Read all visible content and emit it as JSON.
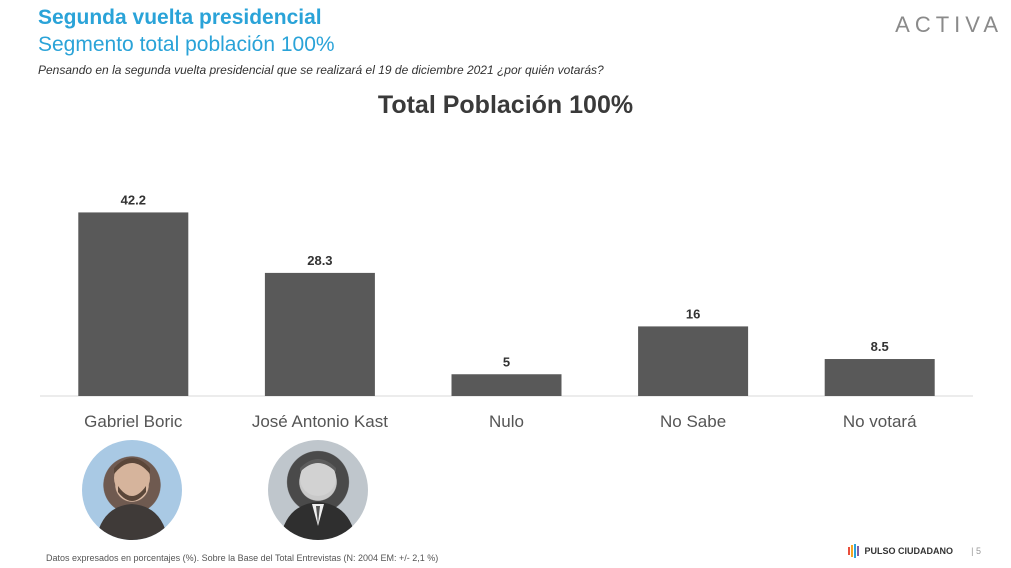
{
  "header": {
    "title": "Segunda vuelta presidencial",
    "subtitle": "Segmento total población 100%",
    "question": "Pensando en la segunda vuelta presidencial que se realizará el 19 de diciembre 2021 ¿por quién votarás?"
  },
  "brand": {
    "logo": "ACTIVA",
    "footer_logo": "PULSO CIUDADANO",
    "page_number": "5",
    "accent_color": "#2aa3d8",
    "bar_color": "#595959"
  },
  "footnote": "Datos expresados en porcentajes (%). Sobre la Base del Total Entrevistas (N: 2004  EM: +/- 2,1 %)",
  "chart_data": {
    "type": "bar",
    "title": "Total Población 100%",
    "categories": [
      "Gabriel Boric",
      "José Antonio Kast",
      "Nulo",
      "No Sabe",
      "No votará"
    ],
    "values": [
      42.2,
      28.3,
      5,
      16,
      8.5
    ],
    "value_labels": [
      "42.2",
      "28.3",
      "5",
      "16",
      "8.5"
    ],
    "xlabel": "",
    "ylabel": "",
    "ylim": [
      0,
      50
    ],
    "grid": false,
    "legend": "none"
  },
  "avatars": [
    {
      "name": "boric-photo"
    },
    {
      "name": "kast-photo"
    }
  ]
}
